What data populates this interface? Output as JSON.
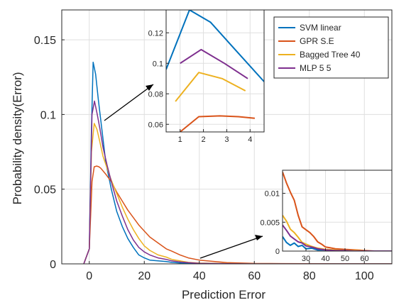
{
  "chart_data": [
    {
      "id": "main",
      "type": "line",
      "xlabel": "Prediction Error",
      "ylabel": "Probability density(Error)",
      "xlim": [
        -10,
        110
      ],
      "ylim": [
        0,
        0.17
      ],
      "xticks": [
        0,
        20,
        40,
        60,
        80,
        100
      ],
      "yticks": [
        0,
        0.05,
        0.1,
        0.15
      ],
      "ytick_labels": [
        "0",
        "0.05",
        "0.1",
        "0.15"
      ],
      "grid": true,
      "legend_position": "top-right",
      "series": [
        {
          "name": "SVM linear",
          "color": "#0072BD",
          "x": [
            -2,
            0,
            0.8,
            1.4,
            2.3,
            3.3,
            4.7,
            6,
            8,
            10,
            12,
            14,
            16,
            18,
            20,
            22,
            25,
            28,
            30,
            33,
            36,
            40,
            50,
            60,
            70,
            80,
            90,
            100,
            110
          ],
          "y": [
            0,
            0.01,
            0.09,
            0.135,
            0.127,
            0.11,
            0.088,
            0.068,
            0.05,
            0.035,
            0.025,
            0.017,
            0.011,
            0.006,
            0.004,
            0.0025,
            0.002,
            0.0015,
            0.001,
            0.0006,
            0.0003,
            0.0002,
            0,
            0,
            0,
            0,
            0,
            0,
            0
          ]
        },
        {
          "name": "GPR S.E",
          "color": "#D95319",
          "x": [
            -2,
            0,
            1,
            1.8,
            2.7,
            3.5,
            4.2,
            6,
            8,
            10,
            12,
            14,
            16,
            18,
            20,
            22,
            25,
            28,
            30,
            33,
            36,
            40,
            50,
            60,
            70,
            80,
            90,
            100,
            110
          ],
          "y": [
            0,
            0.01,
            0.055,
            0.065,
            0.0655,
            0.065,
            0.064,
            0.06,
            0.055,
            0.048,
            0.042,
            0.036,
            0.031,
            0.026,
            0.022,
            0.018,
            0.014,
            0.01,
            0.0085,
            0.006,
            0.004,
            0.0025,
            0.0008,
            0.0003,
            0.0002,
            0.0001,
            0,
            0,
            0
          ]
        },
        {
          "name": "Bagged Tree 40",
          "color": "#EDB120",
          "x": [
            -2,
            0,
            0.8,
            1.8,
            2.8,
            3.8,
            5,
            6.5,
            8,
            10,
            12,
            14,
            16,
            18,
            20,
            22,
            25,
            28,
            30,
            33,
            36,
            40,
            50,
            60,
            70,
            80,
            90,
            100,
            110
          ],
          "y": [
            0,
            0.01,
            0.075,
            0.094,
            0.09,
            0.082,
            0.072,
            0.064,
            0.056,
            0.047,
            0.038,
            0.03,
            0.023,
            0.017,
            0.012,
            0.009,
            0.006,
            0.0045,
            0.003,
            0.002,
            0.001,
            0.0005,
            0.0002,
            0,
            0,
            0,
            0,
            0,
            0
          ]
        },
        {
          "name": "MLP 5 5",
          "color": "#7E2F8E",
          "x": [
            -2,
            0,
            1,
            1.9,
            2.9,
            3.9,
            5,
            6.5,
            8,
            10,
            12,
            14,
            16,
            18,
            20,
            22,
            25,
            28,
            30,
            33,
            36,
            40,
            50,
            60,
            70,
            80,
            90,
            100,
            110
          ],
          "y": [
            0,
            0.01,
            0.1,
            0.109,
            0.1,
            0.09,
            0.078,
            0.066,
            0.055,
            0.042,
            0.032,
            0.023,
            0.016,
            0.011,
            0.008,
            0.006,
            0.004,
            0.003,
            0.002,
            0.0013,
            0.0008,
            0.0004,
            0.0001,
            0,
            0,
            0,
            0,
            0,
            0
          ]
        }
      ]
    },
    {
      "id": "inset-peak",
      "type": "line",
      "xlim": [
        0.4,
        4.6
      ],
      "ylim": [
        0.055,
        0.135
      ],
      "xticks": [
        1,
        2,
        3,
        4
      ],
      "yticks": [
        0.06,
        0.08,
        0.1,
        0.12
      ],
      "ytick_labels": [
        "0.06",
        "0.08",
        "0.1",
        "0.12"
      ],
      "grid": true,
      "series": [
        {
          "color": "#0072BD",
          "x": [
            0.4,
            1.4,
            2.3,
            3.3,
            4.6
          ],
          "y": [
            0.096,
            0.135,
            0.127,
            0.11,
            0.088
          ]
        },
        {
          "color": "#D95319",
          "x": [
            1,
            1.8,
            2.7,
            3.5,
            4.2
          ],
          "y": [
            0.055,
            0.065,
            0.0655,
            0.065,
            0.064
          ]
        },
        {
          "color": "#EDB120",
          "x": [
            0.8,
            1.8,
            2.8,
            3.8
          ],
          "y": [
            0.075,
            0.094,
            0.09,
            0.082
          ]
        },
        {
          "color": "#7E2F8E",
          "x": [
            1,
            1.9,
            2.9,
            3.9
          ],
          "y": [
            0.1,
            0.109,
            0.1,
            0.09
          ]
        }
      ]
    },
    {
      "id": "inset-tail",
      "type": "line",
      "xlim": [
        18,
        74
      ],
      "ylim": [
        0,
        0.014
      ],
      "xticks": [
        30,
        40,
        50,
        60
      ],
      "yticks": [
        0,
        0.005,
        0.01
      ],
      "ytick_labels": [
        "0",
        "0.005",
        "0.01"
      ],
      "grid": true,
      "series": [
        {
          "color": "#0072BD",
          "x": [
            18,
            20,
            22,
            24,
            26,
            28,
            30,
            33,
            36,
            40,
            45,
            50,
            55,
            60,
            65,
            74
          ],
          "y": [
            0.0025,
            0.0015,
            0.001,
            0.0014,
            0.0008,
            0.001,
            0.0004,
            0.0005,
            0.0002,
            0.0002,
            0.0001,
            0,
            0.0001,
            0,
            0,
            0
          ]
        },
        {
          "color": "#D95319",
          "x": [
            18,
            20,
            22,
            24,
            26,
            28,
            30,
            32,
            34,
            36,
            38,
            40,
            42,
            45,
            50,
            55,
            60,
            65,
            74
          ],
          "y": [
            0.0137,
            0.0118,
            0.0102,
            0.0088,
            0.0062,
            0.0042,
            0.0037,
            0.0032,
            0.0025,
            0.0016,
            0.0012,
            0.0007,
            0.0006,
            0.0004,
            0.0003,
            0.0002,
            0.0001,
            0,
            0
          ]
        },
        {
          "color": "#EDB120",
          "x": [
            18,
            20,
            22,
            24,
            26,
            28,
            30,
            33,
            36,
            40,
            45,
            50,
            55,
            60,
            65,
            74
          ],
          "y": [
            0.0062,
            0.0052,
            0.0038,
            0.0032,
            0.0024,
            0.0015,
            0.0012,
            0.0008,
            0.0005,
            0.0003,
            0.0002,
            0.0001,
            0.0001,
            0,
            0,
            0
          ]
        },
        {
          "color": "#7E2F8E",
          "x": [
            18,
            20,
            22,
            24,
            26,
            28,
            30,
            33,
            36,
            40,
            45,
            50,
            55,
            60,
            65,
            74
          ],
          "y": [
            0.0045,
            0.0036,
            0.0026,
            0.0021,
            0.0016,
            0.0014,
            0.0009,
            0.0007,
            0.0004,
            0.0002,
            0.0001,
            0.0001,
            0,
            0,
            0,
            0
          ]
        }
      ]
    }
  ]
}
